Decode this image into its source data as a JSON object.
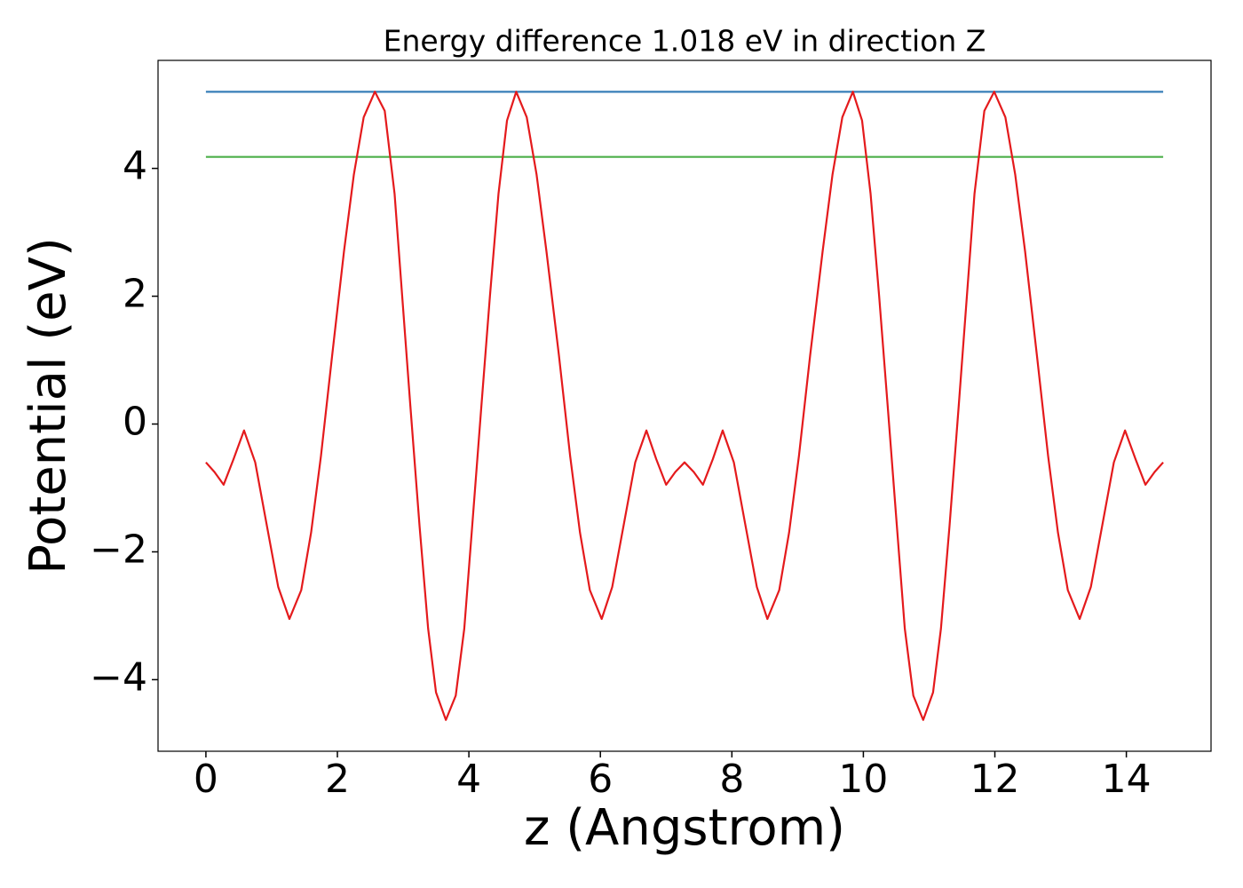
{
  "chart_data": {
    "type": "line",
    "title": "Energy difference 1.018 eV in direction Z",
    "x_label": "z (Angstrom)",
    "y_label": "Potential (eV)",
    "xlim": [
      -0.728,
      15.288
    ],
    "ylim": [
      -5.12,
      5.69
    ],
    "xticks": [
      0,
      2,
      4,
      6,
      8,
      10,
      12,
      14
    ],
    "yticks": [
      {
        "value": -4,
        "label": "−4"
      },
      {
        "value": -2,
        "label": "−2"
      },
      0,
      2,
      4
    ],
    "series": [
      {
        "color": "#377eb8",
        "x": [
          0,
          14.56
        ],
        "values": [
          5.198,
          5.198
        ]
      },
      {
        "color": "#4daf4a",
        "x": [
          0,
          14.56
        ],
        "values": [
          4.18,
          4.18
        ]
      },
      {
        "color": "#e41a1c",
        "x": [
          0,
          0.13,
          0.27,
          0.42,
          0.58,
          0.75,
          0.92,
          1.1,
          1.27,
          1.45,
          1.6,
          1.75,
          1.92,
          2.1,
          2.25,
          2.4,
          2.57,
          2.72,
          2.87,
          3.0,
          3.11,
          3.25,
          3.38,
          3.5,
          3.65,
          3.8,
          3.93,
          4.05,
          4.19,
          4.32,
          4.45,
          4.58,
          4.72,
          4.88,
          5.03,
          5.18,
          5.37,
          5.54,
          5.69,
          5.84,
          6.02,
          6.18,
          6.36,
          6.53,
          6.7,
          6.85,
          7.0,
          7.14,
          7.28,
          7.42,
          7.56,
          7.71,
          7.86,
          8.03,
          8.2,
          8.38,
          8.54,
          8.72,
          8.87,
          9.02,
          9.19,
          9.38,
          9.53,
          9.68,
          9.84,
          9.98,
          10.11,
          10.24,
          10.37,
          10.51,
          10.63,
          10.76,
          10.91,
          11.06,
          11.18,
          11.31,
          11.45,
          11.56,
          11.69,
          11.84,
          11.99,
          12.16,
          12.31,
          12.46,
          12.64,
          12.81,
          12.96,
          13.11,
          13.29,
          13.46,
          13.64,
          13.81,
          13.98,
          14.14,
          14.29,
          14.43,
          14.56
        ],
        "values": [
          -0.6,
          -0.75,
          -0.95,
          -0.55,
          -0.1,
          -0.6,
          -1.55,
          -2.55,
          -3.05,
          -2.6,
          -1.7,
          -0.5,
          1.07,
          2.7,
          3.9,
          4.8,
          5.2,
          4.9,
          3.6,
          1.8,
          0.28,
          -1.6,
          -3.2,
          -4.2,
          -4.63,
          -4.25,
          -3.2,
          -1.6,
          0.28,
          2.0,
          3.6,
          4.75,
          5.2,
          4.8,
          3.9,
          2.7,
          1.07,
          -0.5,
          -1.7,
          -2.6,
          -3.05,
          -2.55,
          -1.55,
          -0.6,
          -0.1,
          -0.55,
          -0.95,
          -0.75,
          -0.6,
          -0.75,
          -0.95,
          -0.55,
          -0.1,
          -0.6,
          -1.55,
          -2.55,
          -3.05,
          -2.6,
          -1.7,
          -0.5,
          1.07,
          2.7,
          3.9,
          4.8,
          5.2,
          4.75,
          3.6,
          2.0,
          0.28,
          -1.6,
          -3.2,
          -4.25,
          -4.63,
          -4.2,
          -3.2,
          -1.6,
          0.28,
          1.8,
          3.6,
          4.9,
          5.2,
          4.8,
          3.9,
          2.7,
          1.07,
          -0.5,
          -1.7,
          -2.6,
          -3.05,
          -2.55,
          -1.55,
          -0.6,
          -0.1,
          -0.55,
          -0.95,
          -0.75,
          -0.6
        ]
      }
    ]
  }
}
